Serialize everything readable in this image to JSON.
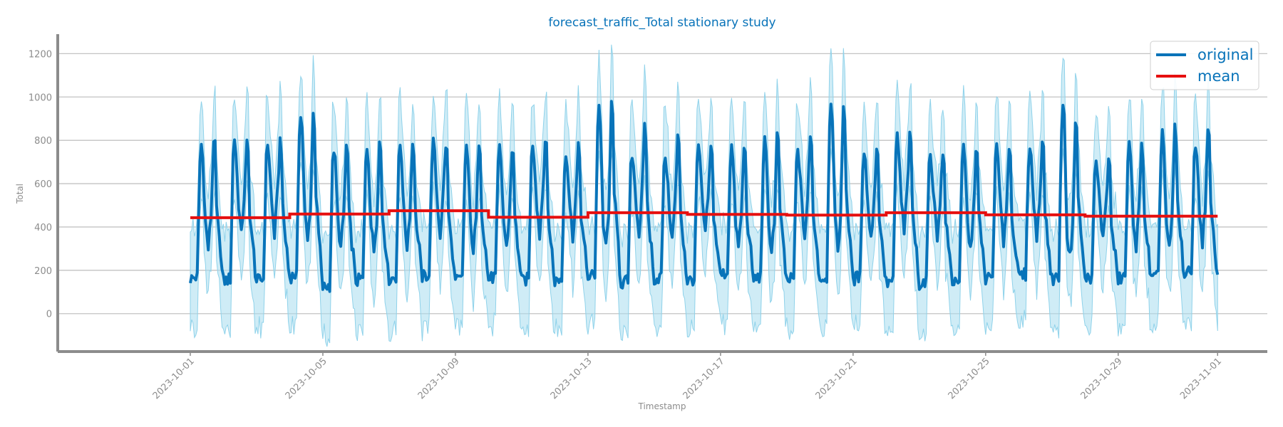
{
  "colors": {
    "primary": "#0873b9",
    "band": "#a8dcef",
    "band_edge": "#8fd2ea",
    "mean": "#e60f0f",
    "grid": "#c3c3c3",
    "axis": "#8c8c8c",
    "tick_text": "#8c8c8c",
    "title": "#0873b9"
  },
  "chart_data": {
    "type": "line",
    "title": "forecast_traffic_Total stationary study",
    "xlabel": "Timestamp",
    "ylabel": "Total",
    "x_range": [
      "2023-09-27T00:00",
      "2023-11-02T12:00"
    ],
    "xlim_days": [
      0,
      0
    ],
    "ylim": [
      -175,
      1290
    ],
    "y_ticks": [
      0,
      200,
      400,
      600,
      800,
      1000,
      1200
    ],
    "x_ticks": [
      "2023-10-01",
      "2023-10-05",
      "2023-10-09",
      "2023-10-13",
      "2023-10-17",
      "2023-10-21",
      "2023-10-25",
      "2023-10-29",
      "2023-11-01"
    ],
    "grid": "horizontal",
    "legend": {
      "position": "top-right",
      "entries": [
        {
          "label": "original",
          "color": "#0873b9"
        },
        {
          "label": "mean",
          "color": "#e60f0f"
        }
      ]
    },
    "daily_peak_series": {
      "name": "original",
      "dates": [
        "2023-10-01",
        "2023-10-02",
        "2023-10-03",
        "2023-10-04",
        "2023-10-05",
        "2023-10-06",
        "2023-10-07",
        "2023-10-08",
        "2023-10-09",
        "2023-10-10",
        "2023-10-11",
        "2023-10-12",
        "2023-10-13",
        "2023-10-14",
        "2023-10-15",
        "2023-10-16",
        "2023-10-17",
        "2023-10-18",
        "2023-10-19",
        "2023-10-20",
        "2023-10-21",
        "2023-10-22",
        "2023-10-23",
        "2023-10-24",
        "2023-10-25",
        "2023-10-26",
        "2023-10-27",
        "2023-10-28",
        "2023-10-29",
        "2023-10-30",
        "2023-10-31"
      ],
      "morning_peak": [
        780,
        810,
        790,
        930,
        760,
        770,
        780,
        790,
        770,
        760,
        790,
        750,
        960,
        740,
        730,
        770,
        770,
        790,
        760,
        990,
        760,
        820,
        740,
        760,
        770,
        780,
        970,
        700,
        770,
        840,
        790
      ],
      "evening_peak": [
        810,
        780,
        800,
        920,
        770,
        790,
        790,
        780,
        800,
        760,
        800,
        760,
        960,
        850,
        810,
        760,
        770,
        820,
        810,
        960,
        760,
        810,
        730,
        770,
        760,
        790,
        900,
        700,
        770,
        850,
        840
      ],
      "night_low": [
        160,
        150,
        150,
        170,
        120,
        150,
        160,
        170,
        150,
        160,
        150,
        150,
        170,
        140,
        160,
        150,
        180,
        160,
        150,
        160,
        160,
        140,
        140,
        150,
        160,
        170,
        160,
        160,
        160,
        160,
        180
      ],
      "midday_low": [
        300,
        360,
        360,
        330,
        300,
        290,
        310,
        360,
        290,
        300,
        360,
        350,
        300,
        360,
        340,
        360,
        300,
        290,
        350,
        300,
        340,
        370,
        350,
        290,
        330,
        350,
        260,
        340,
        310,
        290,
        330
      ]
    },
    "mean_series": {
      "name": "mean",
      "segments": [
        {
          "from": "2023-10-01",
          "to": "2023-10-04",
          "value": 443
        },
        {
          "from": "2023-10-04",
          "to": "2023-10-07",
          "value": 460
        },
        {
          "from": "2023-10-07",
          "to": "2023-10-10",
          "value": 475
        },
        {
          "from": "2023-10-10",
          "to": "2023-10-13",
          "value": 445
        },
        {
          "from": "2023-10-13",
          "to": "2023-10-16",
          "value": 466
        },
        {
          "from": "2023-10-16",
          "to": "2023-10-19",
          "value": 458
        },
        {
          "from": "2023-10-19",
          "to": "2023-10-22",
          "value": 455
        },
        {
          "from": "2023-10-22",
          "to": "2023-10-25",
          "value": 466
        },
        {
          "from": "2023-10-25",
          "to": "2023-10-28",
          "value": 456
        },
        {
          "from": "2023-10-28",
          "to": "2023-11-01",
          "value": 450
        }
      ]
    },
    "band_spread": 230
  }
}
